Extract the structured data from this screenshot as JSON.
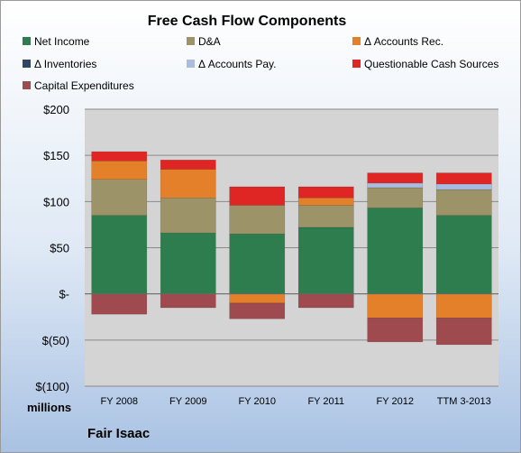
{
  "chart_data": {
    "type": "bar",
    "stacked": true,
    "title": "Free Cash Flow Components",
    "unit_label": "millions",
    "company": "Fair Isaac",
    "categories": [
      "FY 2008",
      "FY 2009",
      "FY 2010",
      "FY 2011",
      "FY 2012",
      "TTM 3-2013"
    ],
    "ylim": [
      -100,
      200
    ],
    "yticks": [
      -100,
      -50,
      0,
      50,
      100,
      150,
      200
    ],
    "ytick_labels": [
      "$(100)",
      "$(50)",
      "$-",
      "$50",
      "$100",
      "$150",
      "$200"
    ],
    "grid": true,
    "legend_position": "top",
    "series": [
      {
        "name": "Net Income",
        "color": "#2e7d4f",
        "values": [
          85,
          66,
          65,
          72,
          93,
          85
        ]
      },
      {
        "name": "D&A",
        "color": "#9c9468",
        "values": [
          39,
          38,
          31,
          24,
          22,
          28
        ]
      },
      {
        "name": "Δ Accounts Rec.",
        "color": "#e5802a",
        "values": [
          20,
          31,
          -10,
          8,
          -26,
          -26
        ]
      },
      {
        "name": "Δ Inventories",
        "color": "#2e4766",
        "values": [
          0,
          0,
          0,
          0,
          0,
          0
        ]
      },
      {
        "name": "Δ Accounts Pay.",
        "color": "#a8bde0",
        "values": [
          0,
          0,
          0,
          0,
          5,
          6
        ]
      },
      {
        "name": "Questionable Cash Sources",
        "color": "#e02525",
        "values": [
          10,
          10,
          20,
          12,
          11,
          12
        ]
      },
      {
        "name": "Capital Expenditures",
        "color": "#9e4a4e",
        "values": [
          -22,
          -15,
          -17,
          -15,
          -26,
          -29
        ]
      }
    ]
  }
}
